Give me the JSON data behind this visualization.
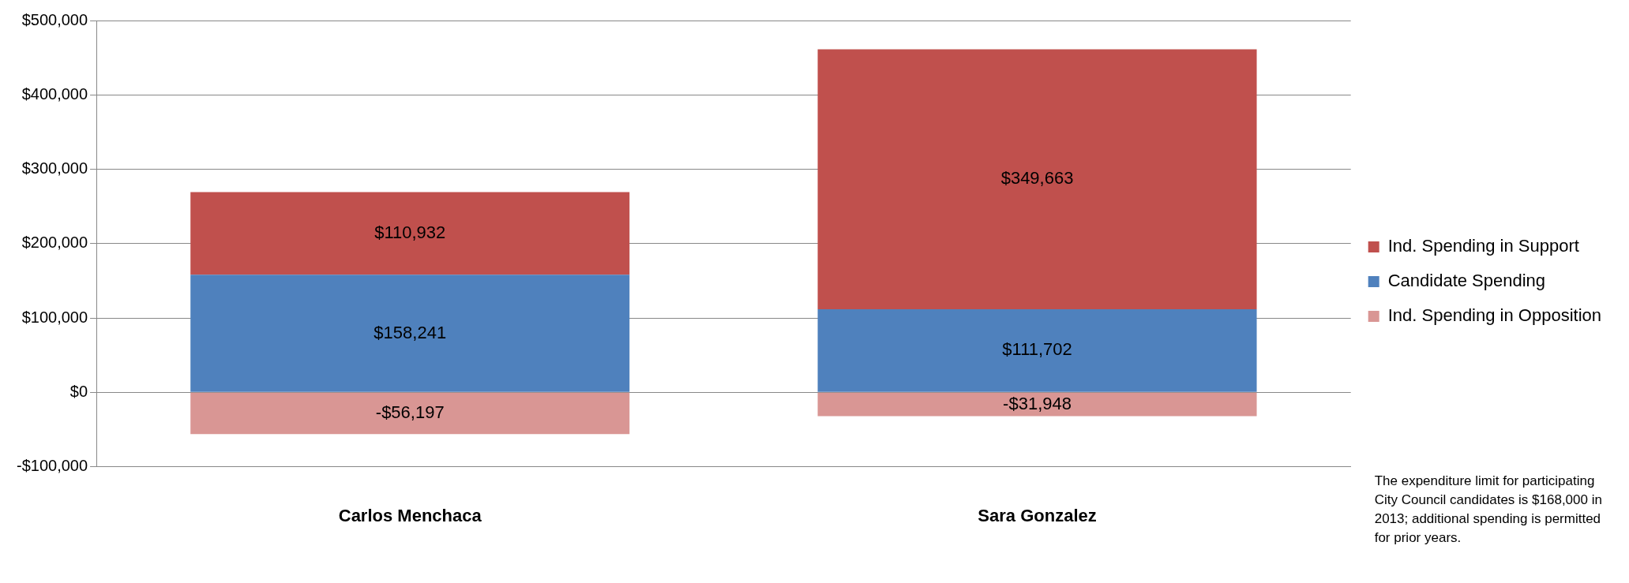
{
  "chart_data": {
    "type": "bar",
    "stacked": true,
    "categories": [
      "Carlos Menchaca",
      "Sara Gonzalez"
    ],
    "series": [
      {
        "name": "Ind. Spending in Opposition",
        "color": "#d99694",
        "values": [
          -56197,
          -31948
        ],
        "value_labels": [
          "-$56,197",
          "-$31,948"
        ]
      },
      {
        "name": "Candidate Spending",
        "color": "#4f81bd",
        "values": [
          158241,
          111702
        ],
        "value_labels": [
          "$158,241",
          "$111,702"
        ]
      },
      {
        "name": "Ind. Spending in Support",
        "color": "#c0504d",
        "values": [
          110932,
          349663
        ],
        "value_labels": [
          "$110,932",
          "$349,663"
        ]
      }
    ],
    "ylim": [
      -100000,
      500000
    ],
    "yticks": [
      {
        "value": -100000,
        "label": "-$100,000"
      },
      {
        "value": 0,
        "label": "$0"
      },
      {
        "value": 100000,
        "label": "$100,000"
      },
      {
        "value": 200000,
        "label": "$200,000"
      },
      {
        "value": 300000,
        "label": "$300,000"
      },
      {
        "value": 400000,
        "label": "$400,000"
      },
      {
        "value": 500000,
        "label": "$500,000"
      }
    ],
    "grid": "y",
    "legend": "right",
    "annotations": [
      "The expenditure limit for participating City Council candidates is $168,000 in 2013; additional spending is permitted for prior years."
    ]
  }
}
